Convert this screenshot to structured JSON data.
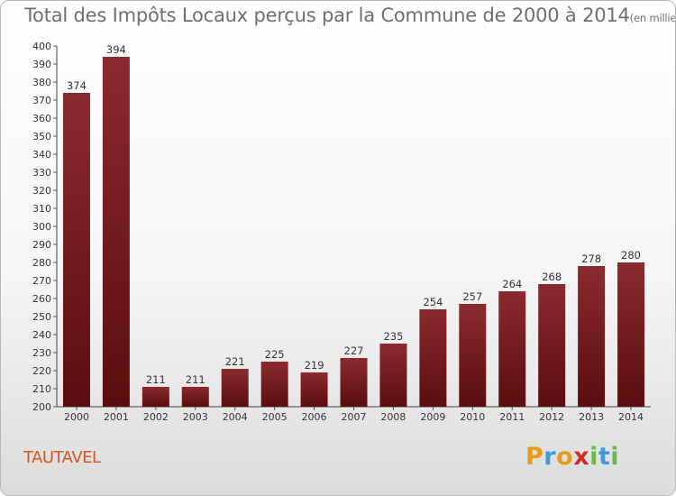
{
  "chart_data": {
    "type": "bar",
    "title": "Total des Impôts Locaux perçus par la Commune de 2000 à 2014",
    "title_unit": "(en milliers d'€)",
    "categories": [
      "2000",
      "2001",
      "2002",
      "2003",
      "2004",
      "2005",
      "2006",
      "2007",
      "2008",
      "2009",
      "2010",
      "2011",
      "2012",
      "2013",
      "2014"
    ],
    "values": [
      374,
      394,
      211,
      211,
      221,
      225,
      219,
      227,
      235,
      254,
      257,
      264,
      268,
      278,
      280
    ],
    "ylim": [
      200,
      400
    ],
    "ytick_step": 10,
    "grid": false,
    "bar_color_top": "#8b2a2e",
    "bar_color_bottom": "#5a0d10"
  },
  "commune": "TAUTAVEL",
  "logo": {
    "letters": [
      "P",
      "r",
      "o",
      "x",
      "i",
      "t",
      "i"
    ],
    "colors": [
      "#e89a1b",
      "#3f9ad8",
      "#e89a1b",
      "#d42a2a",
      "#6ab845",
      "#3f9ad8",
      "#6ab845"
    ]
  }
}
